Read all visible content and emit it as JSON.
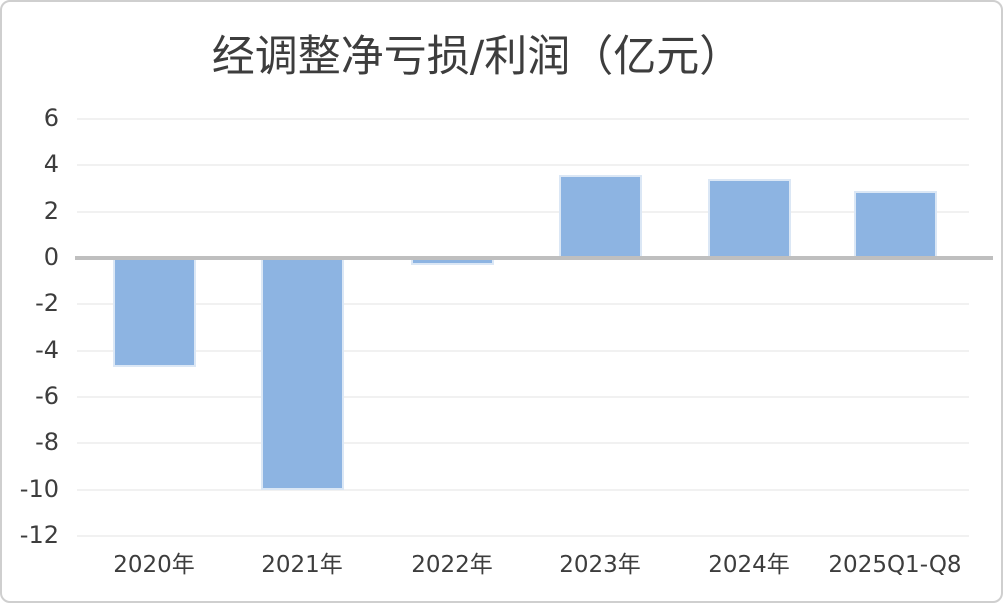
{
  "page": {
    "kind": "standalone-chart-image"
  },
  "chart_data": {
    "type": "bar",
    "title": "经调整净亏损/利润（亿元）",
    "categories": [
      "2020年",
      "2021年",
      "2022年",
      "2023年",
      "2024年",
      "2025Q1-Q8"
    ],
    "values": [
      -4.7,
      -10,
      -0.3,
      3.6,
      3.4,
      2.9
    ],
    "xlabel": "",
    "ylabel": "",
    "ylim": [
      -12,
      6
    ],
    "ytick_interval": 2,
    "yticks": [
      6,
      4,
      2,
      0,
      -2,
      -4,
      -6,
      -8,
      -10,
      -12
    ],
    "grid": true,
    "legend": false,
    "legend_position": "none",
    "colors": {
      "bar_fill": "#8DB4E2",
      "bar_border": "#DBE7F5",
      "gridline": "#F1F1F1",
      "zero_line": "#BFBFBF",
      "text": "#3D3D3D",
      "background": "#FFFFFF",
      "frame_border": "#CFCFCF"
    }
  }
}
